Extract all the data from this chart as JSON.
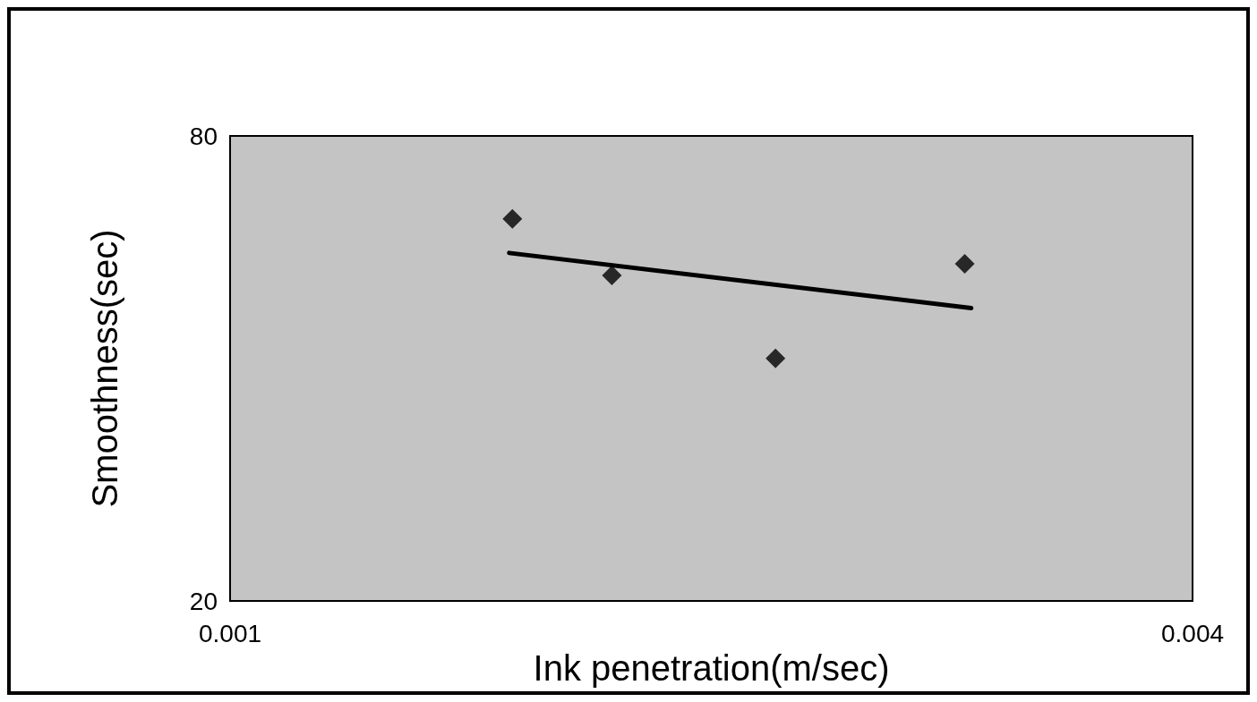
{
  "chart_data": {
    "type": "scatter",
    "xlabel": "Ink penetration(m/sec)",
    "ylabel": "Smoothness(sec)",
    "xlim": [
      0.001,
      0.004
    ],
    "xticks": [
      0.001,
      0.004
    ],
    "ylim": [
      20,
      80
    ],
    "yticks": [
      20,
      80
    ],
    "grid": false,
    "marker": "diamond",
    "series": [
      {
        "color": "#000000",
        "x": [
          0.00188,
          0.00219,
          0.0027,
          0.00329
        ],
        "values": [
          69.3,
          62.0,
          51.3,
          63.5
        ]
      },
      {
        "type": "line",
        "color": "#000000",
        "x": [
          0.00187,
          0.00331
        ],
        "values": [
          64.9,
          57.8
        ],
        "marker": "none",
        "line_style": "solid"
      }
    ]
  }
}
